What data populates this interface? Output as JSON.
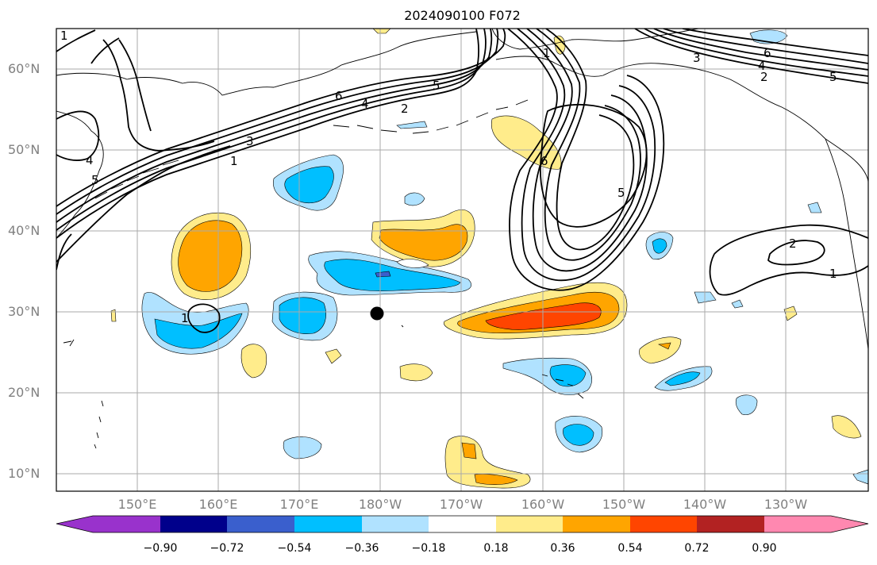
{
  "title": "2024090100 F072",
  "lat_labels": [
    "60°N",
    "50°N",
    "40°N",
    "30°N",
    "20°N",
    "10°N"
  ],
  "lon_labels": [
    "150°E",
    "160°E",
    "170°E",
    "180°W",
    "170°W",
    "160°W",
    "150°W",
    "140°W",
    "130°W"
  ],
  "colorbar": {
    "ticks": [
      "−0.90",
      "−0.72",
      "−0.54",
      "−0.36",
      "−0.18",
      "0.18",
      "0.36",
      "0.54",
      "0.72",
      "0.90"
    ],
    "colors": [
      "#9932CC",
      "#00008B",
      "#3A5FCD",
      "#00BFFF",
      "#B0E2FF",
      "#FFFFFF",
      "#FFEC8B",
      "#FFA500",
      "#FF4500",
      "#B22222",
      "#FF88B0"
    ]
  },
  "contour_labels": [
    "1",
    "3",
    "6",
    "4",
    "5",
    "2",
    "1",
    "3",
    "4",
    "5",
    "1",
    "6",
    "4",
    "2",
    "5",
    "6",
    "5",
    "2",
    "1",
    "1"
  ]
}
